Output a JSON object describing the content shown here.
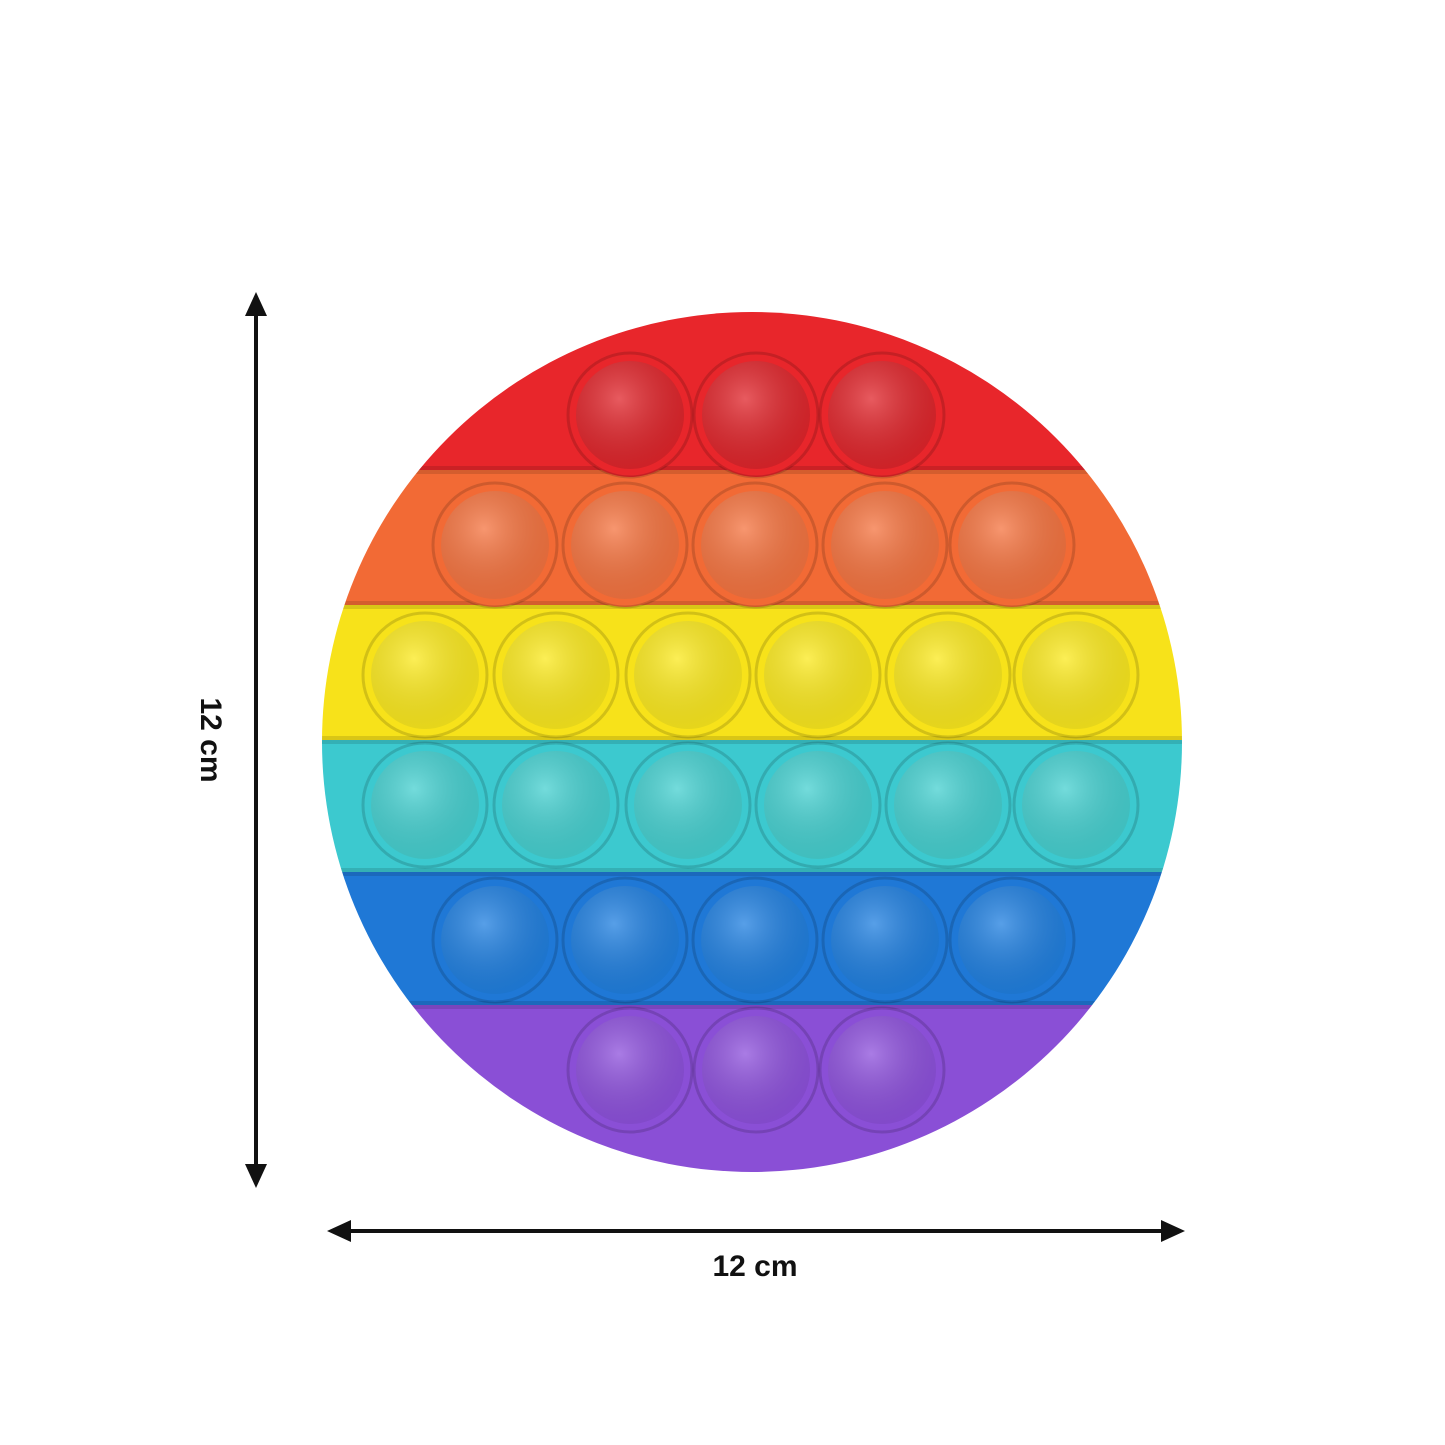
{
  "product": {
    "rows": [
      {
        "color": "#e8262b",
        "bubble": "#e0242a",
        "count": 3
      },
      {
        "color": "#f26a35",
        "bubble": "#f5733f",
        "count": 5
      },
      {
        "color": "#f7e21a",
        "bubble": "#fbe91d",
        "count": 6
      },
      {
        "color": "#3cc9cf",
        "bubble": "#45d0d0",
        "count": 6
      },
      {
        "color": "#1f78d6",
        "bubble": "#1f7fe0",
        "count": 5
      },
      {
        "color": "#8a4fd6",
        "bubble": "#8d50dc",
        "count": 3
      }
    ]
  },
  "dimensions": {
    "width_label": "12 cm",
    "height_label": "12 cm"
  }
}
